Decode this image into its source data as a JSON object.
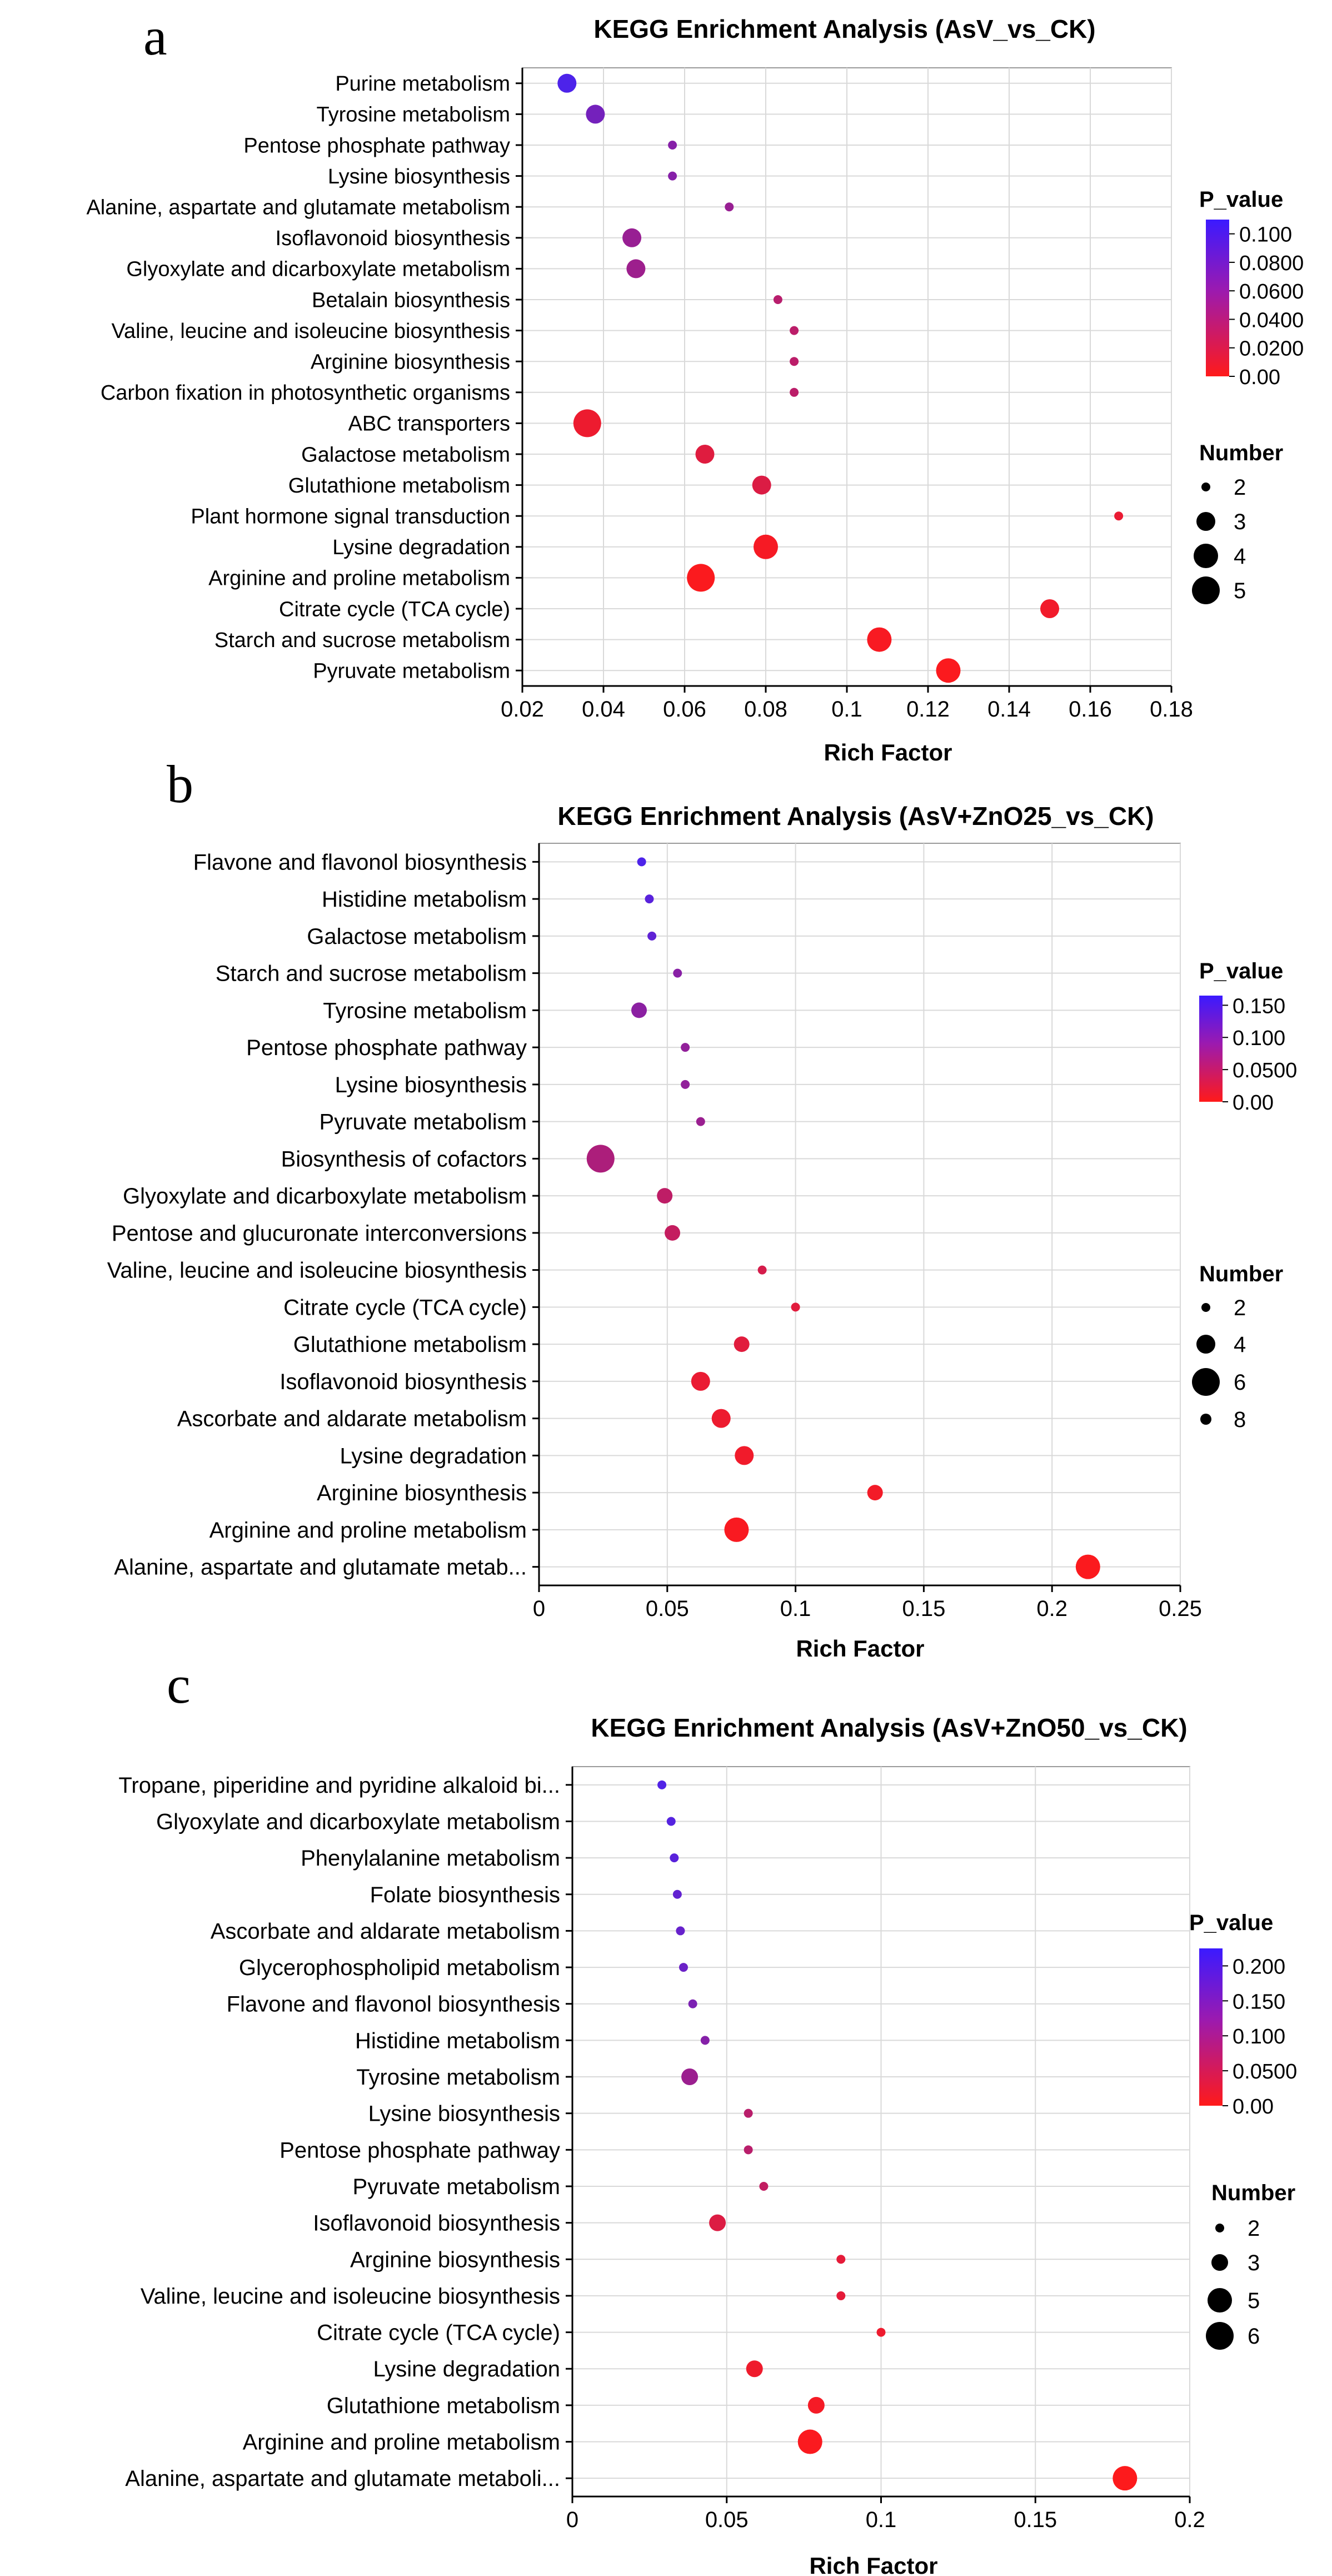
{
  "panels": [
    {
      "letter": "a"
    },
    {
      "letter": "b"
    },
    {
      "letter": "c"
    }
  ],
  "colors": {
    "low_p": "#ff1a1a",
    "mid_p": "#9b1ab0",
    "high_p": "#3b1aff",
    "grid": "#d9d9d9",
    "axis": "#000000"
  },
  "chart_data": [
    {
      "type": "scatter",
      "title": "KEGG Enrichment Analysis (AsV_vs_CK)",
      "xlabel": "Rich Factor",
      "ylabel": "",
      "xlim": [
        0.02,
        0.18
      ],
      "xticks": [
        0.02,
        0.04,
        0.06,
        0.08,
        0.1,
        0.12,
        0.14,
        0.16,
        0.18
      ],
      "xtick_labels": [
        "0.02",
        "0.04",
        "0.06",
        "0.08",
        "0.1",
        "0.12",
        "0.14",
        "0.16",
        "0.18"
      ],
      "grid": true,
      "color_legend": {
        "title": "P_value",
        "max": 0.11,
        "ticks": [
          "0.100",
          "0.0800",
          "0.0600",
          "0.0400",
          "0.0200",
          "0.00"
        ],
        "tick_values": [
          0.1,
          0.08,
          0.06,
          0.04,
          0.02,
          0.0
        ]
      },
      "size_legend": {
        "title": "Number",
        "values": [
          2,
          3,
          4,
          5
        ],
        "labels": [
          "2",
          "3",
          "4",
          "5"
        ]
      },
      "pathways": [
        "Purine metabolism",
        "Tyrosine metabolism",
        "Pentose phosphate pathway",
        "Lysine biosynthesis",
        "Alanine, aspartate and glutamate metabolism",
        "Isoflavonoid biosynthesis",
        "Glyoxylate and dicarboxylate metabolism",
        "Betalain biosynthesis",
        "Valine, leucine and isoleucine biosynthesis",
        "Arginine biosynthesis",
        "Carbon fixation in photosynthetic organisms",
        "ABC transporters",
        "Galactose metabolism",
        "Glutathione metabolism",
        "Plant hormone signal transduction",
        "Lysine degradation",
        "Arginine and proline metabolism",
        "Citrate cycle (TCA cycle)",
        "Starch and sucrose metabolism",
        "Pyruvate metabolism"
      ],
      "rich_factor": [
        0.031,
        0.038,
        0.057,
        0.057,
        0.071,
        0.047,
        0.048,
        0.083,
        0.087,
        0.087,
        0.087,
        0.036,
        0.065,
        0.079,
        0.167,
        0.08,
        0.064,
        0.15,
        0.108,
        0.125
      ],
      "number": [
        3,
        3,
        2,
        2,
        2,
        3,
        3,
        2,
        2,
        2,
        2,
        5,
        3,
        3,
        2,
        4,
        5,
        3,
        4,
        4
      ],
      "p_value": [
        0.1,
        0.078,
        0.068,
        0.068,
        0.058,
        0.058,
        0.055,
        0.04,
        0.038,
        0.038,
        0.038,
        0.01,
        0.018,
        0.02,
        0.012,
        0.005,
        0.002,
        0.008,
        0.004,
        0.002
      ]
    },
    {
      "type": "scatter",
      "title": "KEGG Enrichment Analysis (AsV+ZnO25_vs_CK)",
      "xlabel": "Rich Factor",
      "ylabel": "",
      "xlim": [
        0,
        0.25
      ],
      "xticks": [
        0,
        0.05,
        0.1,
        0.15,
        0.2,
        0.25
      ],
      "xtick_labels": [
        "0",
        "0.05",
        "0.1",
        "0.15",
        "0.2",
        "0.25"
      ],
      "grid": true,
      "color_legend": {
        "title": "P_value",
        "max": 0.165,
        "ticks": [
          "0.150",
          "0.100",
          "0.0500",
          "0.00"
        ],
        "tick_values": [
          0.15,
          0.1,
          0.05,
          0.0
        ]
      },
      "size_legend": {
        "title": "Number",
        "values": [
          2,
          4,
          6,
          8
        ],
        "labels": [
          "2",
          "4",
          "6",
          "8"
        ]
      },
      "pathways": [
        "Flavone and flavonol biosynthesis",
        "Histidine metabolism",
        "Galactose metabolism",
        "Starch and sucrose metabolism",
        "Tyrosine metabolism",
        "Pentose phosphate pathway",
        "Lysine biosynthesis",
        "Pyruvate metabolism",
        "Biosynthesis of cofactors",
        "Glyoxylate and dicarboxylate metabolism",
        "Pentose and glucuronate interconversions",
        "Valine, leucine and isoleucine biosynthesis",
        "Citrate cycle (TCA cycle)",
        "Glutathione metabolism",
        "Isoflavonoid biosynthesis",
        "Ascorbate and aldarate metabolism",
        "Lysine degradation",
        "Arginine biosynthesis",
        "Arginine and proline metabolism",
        "Alanine, aspartate and glutamate metab..."
      ],
      "rich_factor": [
        0.04,
        0.043,
        0.044,
        0.054,
        0.039,
        0.057,
        0.057,
        0.063,
        0.024,
        0.049,
        0.052,
        0.087,
        0.1,
        0.079,
        0.063,
        0.071,
        0.08,
        0.131,
        0.077,
        0.214
      ],
      "number": [
        2,
        2,
        2,
        2,
        3,
        2,
        2,
        2,
        6,
        3,
        3,
        2,
        2,
        3,
        4,
        4,
        4,
        3,
        5,
        5
      ],
      "p_value": [
        0.15,
        0.14,
        0.135,
        0.1,
        0.098,
        0.092,
        0.092,
        0.085,
        0.07,
        0.055,
        0.05,
        0.035,
        0.025,
        0.025,
        0.018,
        0.015,
        0.012,
        0.01,
        0.005,
        0.003
      ]
    },
    {
      "type": "scatter",
      "title": "KEGG Enrichment Analysis (AsV+ZnO50_vs_CK)",
      "xlabel": "Rich Factor",
      "ylabel": "",
      "xlim": [
        0,
        0.2
      ],
      "xticks": [
        0,
        0.05,
        0.1,
        0.15,
        0.2
      ],
      "xtick_labels": [
        "0",
        "0.05",
        "0.1",
        "0.15",
        "0.2"
      ],
      "grid": true,
      "color_legend": {
        "title": "P_value",
        "max": 0.225,
        "ticks": [
          "0.200",
          "0.150",
          "0.100",
          "0.0500",
          "0.00"
        ],
        "tick_values": [
          0.2,
          0.15,
          0.1,
          0.05,
          0.0
        ]
      },
      "size_legend": {
        "title": "Number",
        "values": [
          2,
          3,
          5,
          6
        ],
        "labels": [
          "2",
          "3",
          "5",
          "6"
        ]
      },
      "pathways": [
        "Tropane, piperidine and pyridine alkaloid bi...",
        "Glyoxylate and dicarboxylate metabolism",
        "Phenylalanine metabolism",
        "Folate biosynthesis",
        "Ascorbate and aldarate metabolism",
        "Glycerophospholipid metabolism",
        "Flavone and flavonol biosynthesis",
        "Histidine metabolism",
        "Tyrosine metabolism",
        "Lysine biosynthesis",
        "Pentose phosphate pathway",
        "Pyruvate metabolism",
        "Isoflavonoid biosynthesis",
        "Arginine biosynthesis",
        "Valine, leucine and isoleucine biosynthesis",
        "Citrate cycle (TCA cycle)",
        "Lysine degradation",
        "Glutathione metabolism",
        "Arginine and proline metabolism",
        "Alanine, aspartate and glutamate metaboli..."
      ],
      "rich_factor": [
        0.029,
        0.032,
        0.033,
        0.034,
        0.035,
        0.036,
        0.039,
        0.043,
        0.038,
        0.057,
        0.057,
        0.062,
        0.047,
        0.087,
        0.087,
        0.1,
        0.059,
        0.079,
        0.077,
        0.179
      ],
      "number": [
        2,
        2,
        2,
        2,
        2,
        2,
        2,
        2,
        3,
        2,
        2,
        2,
        3,
        2,
        2,
        2,
        3,
        3,
        5,
        5
      ],
      "p_value": [
        0.2,
        0.195,
        0.19,
        0.18,
        0.175,
        0.17,
        0.15,
        0.14,
        0.115,
        0.08,
        0.08,
        0.07,
        0.04,
        0.03,
        0.03,
        0.02,
        0.018,
        0.012,
        0.005,
        0.002
      ]
    }
  ]
}
